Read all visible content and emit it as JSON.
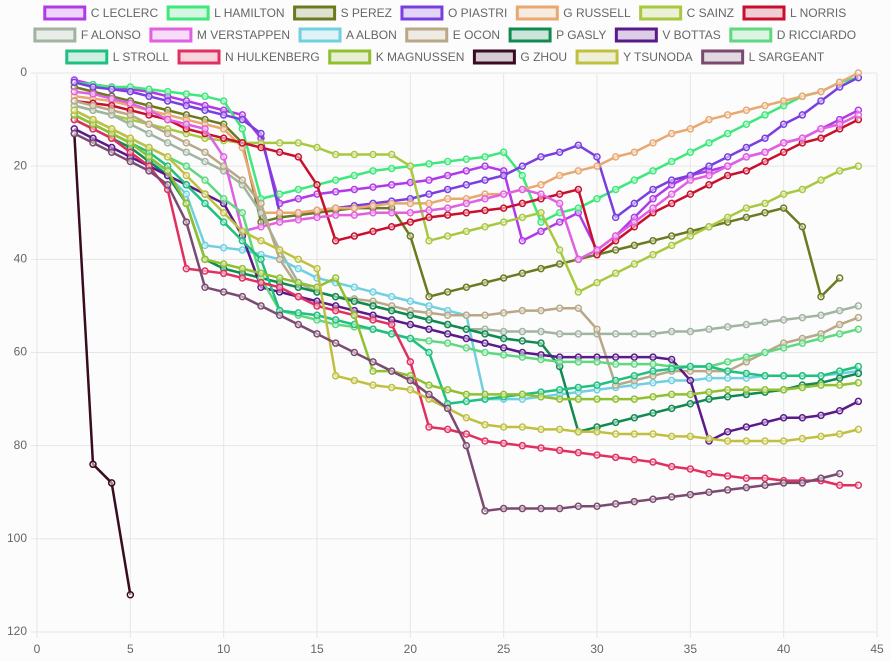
{
  "chart_data": {
    "type": "line",
    "y_reversed": true,
    "grid": true,
    "legend_position": "top",
    "x": [
      2,
      3,
      4,
      5,
      6,
      7,
      8,
      9,
      10,
      11,
      12,
      13,
      14,
      15,
      16,
      17,
      18,
      19,
      20,
      21,
      22,
      23,
      24,
      25,
      26,
      27,
      28,
      29,
      30,
      31,
      32,
      33,
      34,
      35,
      36,
      37,
      38,
      39,
      40,
      41,
      42,
      43,
      44
    ],
    "xlim": [
      0,
      45
    ],
    "xticks": [
      0,
      5,
      10,
      15,
      20,
      25,
      30,
      35,
      40,
      45
    ],
    "ylim": [
      0,
      120
    ],
    "yticks": [
      0,
      20,
      40,
      60,
      80,
      100,
      120
    ],
    "series": [
      {
        "name": "C LECLERC",
        "color": "#b03ae8",
        "values": [
          1.5,
          2.5,
          3,
          3.5,
          4,
          5,
          6,
          7,
          8,
          9,
          14,
          28,
          27,
          26,
          25.5,
          25,
          24.5,
          24,
          23.5,
          23,
          22,
          21,
          20,
          21,
          36,
          34,
          32,
          30,
          38,
          35,
          31,
          27,
          24,
          22,
          21,
          20,
          18,
          17,
          15,
          14,
          12,
          10,
          8
        ]
      },
      {
        "name": "L HAMILTON",
        "color": "#3ee87a",
        "values": [
          2,
          2.5,
          3,
          3,
          3.5,
          4,
          4.5,
          5,
          6,
          12,
          27,
          26,
          25,
          24,
          23,
          22,
          21,
          20.5,
          20,
          19.5,
          19,
          18.5,
          18,
          17,
          22,
          32,
          30,
          29,
          27,
          25,
          23,
          21,
          19,
          17,
          15,
          13,
          11,
          9,
          7,
          5,
          4,
          2,
          1
        ]
      },
      {
        "name": "S PEREZ",
        "color": "#6b7a1f",
        "values": [
          3,
          4,
          5,
          6,
          7,
          8,
          9,
          10,
          11,
          15,
          32,
          31,
          30.5,
          30,
          29.5,
          29,
          29,
          29,
          35,
          48,
          47,
          46,
          45,
          44,
          43,
          42,
          41,
          40,
          39,
          38,
          37,
          36,
          35,
          34,
          33,
          32,
          31,
          30,
          29,
          33,
          48,
          44,
          null
        ]
      },
      {
        "name": "O PIASTRI",
        "color": "#7a3ee0",
        "values": [
          2,
          3,
          3.5,
          4,
          5,
          6,
          7,
          8,
          9,
          10,
          13,
          30,
          30,
          29.5,
          29,
          28.5,
          28,
          27.5,
          27,
          26,
          25,
          24,
          23,
          22,
          20,
          18,
          17,
          15.5,
          18,
          31,
          28,
          25,
          23,
          22,
          20,
          18,
          16,
          14,
          11,
          9,
          6,
          3,
          1
        ]
      },
      {
        "name": "G RUSSELL",
        "color": "#e8a870",
        "values": [
          5,
          5.5,
          6,
          7,
          8,
          9,
          10,
          11,
          12,
          16,
          30,
          30,
          30,
          29.5,
          29,
          29,
          28.5,
          28,
          28,
          28,
          27,
          27,
          26,
          26,
          25,
          24,
          22,
          21,
          20,
          18,
          17,
          15,
          13,
          12,
          10,
          9,
          8,
          7,
          6,
          5,
          4,
          2,
          0
        ]
      },
      {
        "name": "C SAINZ",
        "color": "#a8c840",
        "values": [
          7,
          8,
          9,
          10,
          11,
          12,
          13,
          14,
          14.5,
          15,
          15,
          15,
          15,
          16,
          17.5,
          17.5,
          17.5,
          17.5,
          20,
          36,
          35,
          34,
          33,
          32,
          31,
          30,
          38,
          47,
          45,
          43,
          41,
          39,
          37,
          35,
          33,
          31,
          29,
          28,
          26,
          25,
          23,
          21,
          20
        ]
      },
      {
        "name": "L NORRIS",
        "color": "#c8102e",
        "values": [
          6,
          6.5,
          7,
          8,
          9,
          10,
          12,
          13,
          14,
          15,
          16,
          17,
          18,
          24,
          36,
          35,
          34,
          33,
          32,
          31,
          30.5,
          30,
          29.5,
          29,
          28,
          27,
          26,
          25,
          39,
          36,
          33,
          30,
          28,
          26,
          24,
          22,
          21,
          19,
          17,
          15,
          14,
          12,
          10
        ]
      },
      {
        "name": "F ALONSO",
        "color": "#a0b4a0",
        "values": [
          7,
          8,
          9,
          11,
          13,
          15,
          17,
          19,
          21,
          24,
          30,
          38,
          45,
          47,
          48,
          49,
          50,
          51,
          52,
          53,
          54,
          55,
          55,
          55.5,
          55.5,
          55.5,
          56,
          56,
          56,
          56,
          56,
          56,
          55.5,
          55.5,
          55,
          54.5,
          54,
          53.5,
          53,
          52.5,
          52,
          51,
          50
        ]
      },
      {
        "name": "M VERSTAPPEN",
        "color": "#e060e0",
        "values": [
          4,
          4.5,
          5.5,
          6.5,
          8,
          10,
          11,
          12,
          18,
          34,
          33,
          32,
          31.5,
          31,
          30.5,
          30.5,
          30,
          30,
          30,
          29.5,
          29,
          28,
          27,
          26,
          25,
          26,
          28,
          40,
          38,
          35,
          32,
          29,
          26,
          23,
          22,
          20,
          18,
          17,
          15,
          14,
          12,
          11,
          9
        ]
      },
      {
        "name": "A ALBON",
        "color": "#70d0e0",
        "values": [
          9,
          11,
          13,
          15,
          18,
          22,
          26,
          37,
          37.5,
          38,
          39,
          40,
          42,
          44,
          45,
          46,
          47,
          48,
          49,
          50,
          51,
          52,
          70,
          70,
          70,
          69.5,
          69,
          68.5,
          68,
          67.5,
          67,
          66.5,
          66,
          66,
          65.5,
          65.5,
          65.5,
          65,
          65,
          65,
          65,
          64.5,
          64
        ]
      },
      {
        "name": "E OCON",
        "color": "#b8a888",
        "values": [
          6,
          7,
          8,
          9,
          11,
          13,
          15,
          17,
          20,
          23,
          28,
          40,
          46,
          47,
          48,
          48.5,
          49,
          50,
          51,
          51.5,
          52,
          52,
          52,
          51.5,
          51,
          51,
          50.5,
          50.5,
          55,
          67,
          66,
          65,
          64,
          64,
          64,
          64,
          62,
          60,
          58,
          57,
          56,
          54,
          52.5
        ]
      },
      {
        "name": "P GASLY",
        "color": "#108a50",
        "values": [
          10,
          12,
          14,
          16,
          19,
          22,
          28,
          40,
          42,
          43,
          44,
          45,
          46,
          47,
          48,
          49,
          50,
          51,
          52,
          53,
          54,
          55,
          56,
          57,
          57.5,
          58,
          63,
          77,
          76,
          75,
          74,
          73,
          72,
          71,
          70,
          69.5,
          69,
          68.5,
          68,
          67,
          66.5,
          65.5,
          64.5
        ]
      },
      {
        "name": "V BOTTAS",
        "color": "#5a1a8a",
        "values": [
          12,
          14,
          16,
          18,
          20,
          22,
          24,
          26,
          28,
          35,
          46,
          47,
          48,
          49,
          50,
          51,
          52,
          53,
          54,
          55,
          56,
          57,
          58,
          59,
          60,
          60.5,
          61,
          61,
          61,
          61,
          61,
          61,
          61.5,
          66,
          79,
          77,
          76,
          75,
          74,
          74,
          73.5,
          72.5,
          70.5
        ]
      },
      {
        "name": "D RICCIARDO",
        "color": "#60d880",
        "values": [
          8,
          10,
          12,
          14,
          16,
          18,
          20,
          23,
          27,
          30,
          44,
          51,
          52,
          53,
          54,
          54.5,
          55,
          56,
          57,
          57.5,
          58,
          59,
          60,
          60.5,
          61,
          61.5,
          62,
          62,
          62,
          62.5,
          62.5,
          62.5,
          63,
          63,
          63,
          62,
          61,
          60,
          59,
          58,
          57,
          56,
          55
        ]
      },
      {
        "name": "L STROLL",
        "color": "#20c080",
        "values": [
          9,
          11,
          13,
          15,
          17,
          20,
          24,
          28,
          32,
          36,
          40,
          51,
          51.5,
          52,
          53,
          54,
          55,
          56,
          57,
          60,
          71,
          70.5,
          70,
          69.5,
          69,
          68.5,
          68,
          67.5,
          67,
          66,
          65,
          64,
          63.5,
          63,
          63,
          64,
          64.5,
          65,
          65,
          65,
          65,
          64,
          63
        ]
      },
      {
        "name": "N HULKENBERG",
        "color": "#e03060",
        "values": [
          10,
          12,
          14,
          17,
          20,
          25,
          42,
          42.5,
          43,
          44,
          45,
          46,
          48,
          50,
          51,
          52,
          53,
          54,
          62,
          76,
          76.5,
          77.5,
          79,
          79.5,
          80,
          80.5,
          81,
          81.5,
          82,
          82.5,
          83,
          83.5,
          84.5,
          85,
          86,
          86.5,
          87,
          87,
          87.5,
          87.5,
          87.5,
          88.5,
          88.5
        ]
      },
      {
        "name": "K MAGNUSSEN",
        "color": "#90c030",
        "values": [
          9,
          11,
          13,
          15,
          18,
          21,
          28,
          40,
          41,
          42,
          43,
          44,
          45,
          46,
          44,
          52,
          64,
          64,
          65,
          67,
          68,
          69,
          69,
          69,
          69,
          69.5,
          70,
          70,
          70,
          70,
          70,
          69.5,
          69,
          69,
          68.5,
          68,
          68,
          68,
          68,
          67.5,
          67,
          67,
          66.5
        ]
      },
      {
        "name": "G ZHOU",
        "color": "#3a0a20",
        "values": [
          13,
          84,
          88,
          112,
          null,
          null,
          null,
          null,
          null,
          null,
          null,
          null,
          null,
          null,
          null,
          null,
          null,
          null,
          null,
          null,
          null,
          null,
          null,
          null,
          null,
          null,
          null,
          null,
          null,
          null,
          null,
          null,
          null,
          null,
          null,
          null,
          null,
          null,
          null,
          null,
          null,
          null,
          null
        ]
      },
      {
        "name": "Y TSUNODA",
        "color": "#c0c040",
        "values": [
          8,
          10,
          12,
          14,
          16,
          18,
          22,
          26,
          30,
          34,
          36,
          38,
          40,
          42,
          65,
          66,
          67,
          67.5,
          68,
          70,
          72,
          74,
          75.5,
          76,
          76,
          76.5,
          76.5,
          77,
          77,
          77.5,
          77.5,
          77.5,
          78,
          78,
          78.5,
          79,
          79,
          79,
          79,
          78.5,
          78,
          77.5,
          76.5
        ]
      },
      {
        "name": "L SARGEANT",
        "color": "#7a4a70",
        "values": [
          13,
          15,
          17,
          19,
          21,
          24,
          32,
          46,
          47,
          48,
          50,
          52,
          54,
          56,
          58,
          60,
          62,
          64,
          66,
          69,
          72,
          80,
          94,
          93.5,
          93.5,
          93.5,
          93.5,
          93,
          93,
          92.5,
          92,
          91.5,
          91,
          90.5,
          90,
          89.5,
          89,
          88.5,
          88,
          88,
          87,
          86,
          null
        ]
      }
    ]
  }
}
